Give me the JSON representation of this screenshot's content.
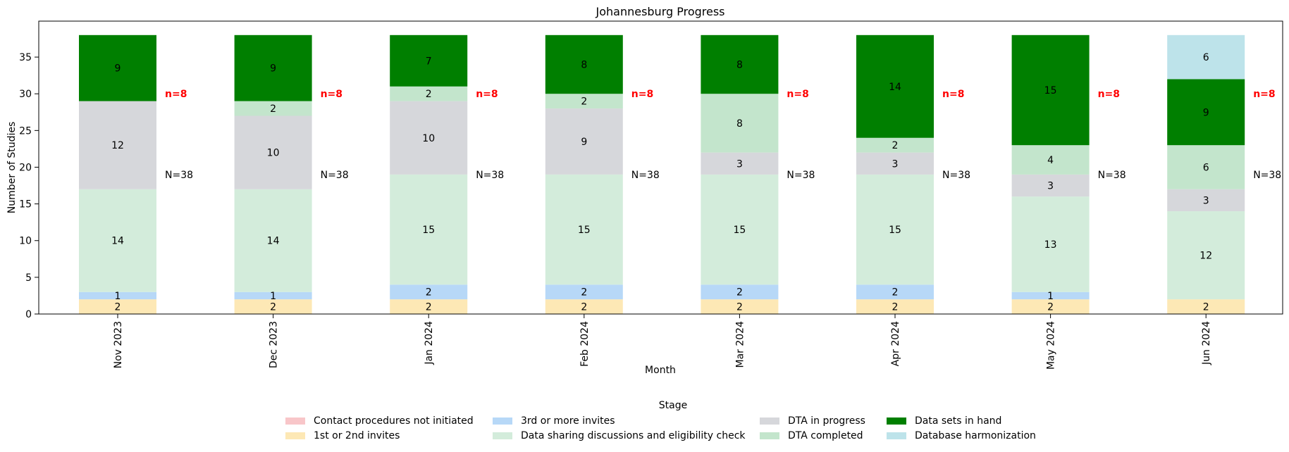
{
  "chart_data": {
    "type": "bar",
    "stacked": true,
    "title": "Johannesburg Progress",
    "xlabel": "Month",
    "ylabel": "Number of Studies",
    "ylim": [
      0,
      39.9
    ],
    "yticks": [
      0,
      5,
      10,
      15,
      20,
      25,
      30,
      35
    ],
    "grid": false,
    "categories": [
      "Nov 2023",
      "Dec 2023",
      "Jan 2024",
      "Feb 2024",
      "Mar 2024",
      "Apr 2024",
      "May 2024",
      "Jun 2024"
    ],
    "series": [
      {
        "name": "Contact procedures not initiated",
        "color": "#f8c6c9",
        "values": [
          0,
          0,
          0,
          0,
          0,
          0,
          0,
          0
        ]
      },
      {
        "name": "1st or 2nd invites",
        "color": "#fde8b5",
        "values": [
          2,
          2,
          2,
          2,
          2,
          2,
          2,
          2
        ]
      },
      {
        "name": "3rd or more invites",
        "color": "#b7d8f7",
        "values": [
          1,
          1,
          2,
          2,
          2,
          2,
          1,
          0
        ]
      },
      {
        "name": "Data sharing discussions and eligibility check",
        "color": "#d3ecdb",
        "values": [
          14,
          14,
          15,
          15,
          15,
          15,
          13,
          12
        ]
      },
      {
        "name": "DTA in progress",
        "color": "#d6d7db",
        "values": [
          12,
          10,
          10,
          9,
          3,
          3,
          3,
          3
        ]
      },
      {
        "name": "DTA completed",
        "color": "#c3e5cc",
        "values": [
          0,
          2,
          2,
          2,
          8,
          2,
          4,
          6
        ]
      },
      {
        "name": "Data sets in hand",
        "color": "#007f00",
        "values": [
          9,
          9,
          7,
          8,
          8,
          14,
          15,
          9
        ]
      },
      {
        "name": "Database harmonization",
        "color": "#bde3ea",
        "values": [
          0,
          0,
          0,
          0,
          0,
          0,
          0,
          6
        ]
      }
    ],
    "annotations": {
      "total_labels": [
        "N=38",
        "N=38",
        "N=38",
        "N=38",
        "N=38",
        "N=38",
        "N=38",
        "N=38"
      ],
      "total_label_y": [
        19,
        19,
        19,
        19,
        19,
        19,
        19,
        19
      ],
      "highlight_labels": [
        "n=8",
        "n=8",
        "n=8",
        "n=8",
        "n=8",
        "n=8",
        "n=8",
        "n=8"
      ],
      "highlight_label_y": [
        30,
        30,
        30,
        30,
        30,
        30,
        30,
        30
      ],
      "highlight_color": "#ff0000"
    },
    "legend": {
      "title": "Stage",
      "placement": "bottom-center",
      "columns": 4
    }
  }
}
